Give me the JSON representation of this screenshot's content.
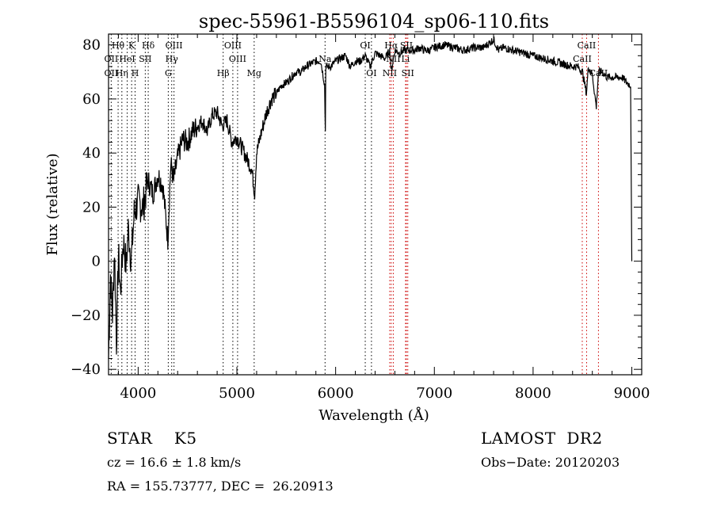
{
  "chart_data": {
    "type": "line",
    "title": "spec-55961-B5596104_sp06-110.fits",
    "xlabel": "Wavelength (Å)",
    "ylabel": "Flux (relative)",
    "xlim": [
      3700,
      9100
    ],
    "ylim": [
      -42,
      84
    ],
    "xticks": [
      "4000",
      "5000",
      "6000",
      "7000",
      "8000",
      "9000"
    ],
    "xtick_values": [
      4000,
      5000,
      6000,
      7000,
      8000,
      9000
    ],
    "yticks": [
      "−40",
      "−20",
      "0",
      "20",
      "40",
      "60",
      "80"
    ],
    "ytick_values": [
      -40,
      -20,
      0,
      20,
      40,
      60,
      80
    ],
    "series": [
      {
        "x": [
          3700,
          3720,
          3740,
          3760,
          3780,
          3800,
          3820,
          3850,
          3880,
          3900,
          3930,
          3960,
          4000,
          4050,
          4100,
          4150,
          4200,
          4250,
          4300,
          4330,
          4360,
          4400,
          4450,
          4500,
          4550,
          4600,
          4650,
          4700,
          4750,
          4800,
          4850,
          4900,
          4950,
          5000,
          5050,
          5100,
          5150,
          5180,
          5200,
          5250,
          5300,
          5350,
          5400,
          5450,
          5500,
          5550,
          5600,
          5650,
          5700,
          5750,
          5800,
          5850,
          5890,
          5895,
          5900,
          5950,
          6000,
          6050,
          6100,
          6150,
          6200,
          6250,
          6300,
          6350,
          6400,
          6450,
          6500,
          6550,
          6563,
          6600,
          6650,
          6700,
          6750,
          6800,
          6850,
          6900,
          6950,
          7000,
          7100,
          7200,
          7300,
          7400,
          7500,
          7600,
          7650,
          7700,
          7800,
          7900,
          8000,
          8100,
          8200,
          8300,
          8400,
          8450,
          8500,
          8540,
          8560,
          8600,
          8640,
          8662,
          8700,
          8750,
          8800,
          8850,
          8900,
          8950,
          8990,
          9000
        ],
        "y": [
          -36,
          -5,
          -20,
          5,
          -30,
          3,
          -12,
          8,
          -2,
          12,
          0,
          18,
          22,
          20,
          30,
          25,
          32,
          28,
          8,
          36,
          30,
          38,
          45,
          44,
          48,
          50,
          52,
          48,
          54,
          55,
          50,
          52,
          44,
          46,
          42,
          38,
          34,
          25,
          40,
          48,
          55,
          60,
          62,
          65,
          66,
          68,
          70,
          70,
          72,
          73,
          74,
          74,
          65,
          42,
          72,
          72,
          74,
          75,
          76,
          72,
          74,
          74,
          76,
          72,
          77,
          76,
          75,
          78,
          70,
          78,
          77,
          78,
          78,
          78,
          79,
          78,
          78,
          79,
          80,
          79,
          78,
          79,
          79,
          82,
          78,
          79,
          78,
          77,
          76,
          75,
          74,
          73,
          72,
          72,
          70,
          62,
          72,
          69,
          57,
          70,
          70,
          68,
          68,
          68,
          68,
          66,
          65,
          0
        ]
      }
    ],
    "line_labels": [
      {
        "label": "Hθ",
        "x": 3797,
        "row": 0,
        "color": "#000000"
      },
      {
        "label": "K",
        "x": 3934,
        "row": 0,
        "color": "#000000"
      },
      {
        "label": "Hδ",
        "x": 4102,
        "row": 0,
        "color": "#000000"
      },
      {
        "label": "OIII",
        "x": 4363,
        "row": 0,
        "color": "#000000"
      },
      {
        "label": "OIII",
        "x": 4959,
        "row": 0,
        "color": "#000000"
      },
      {
        "label": "OI",
        "x": 6300,
        "row": 0,
        "color": "#000000"
      },
      {
        "label": "Hα",
        "x": 6563,
        "row": 0,
        "color": "#000000"
      },
      {
        "label": "SII",
        "x": 6717,
        "row": 0,
        "color": "#000000"
      },
      {
        "label": "CaII",
        "x": 8542,
        "row": 0,
        "color": "#000000"
      },
      {
        "label": "OII",
        "x": 3727,
        "row": 1,
        "color": "#000000"
      },
      {
        "label": "HeI",
        "x": 3889,
        "row": 1,
        "color": "#000000"
      },
      {
        "label": "SII",
        "x": 4072,
        "row": 1,
        "color": "#000000"
      },
      {
        "label": "Hγ",
        "x": 4340,
        "row": 1,
        "color": "#000000"
      },
      {
        "label": "OIII",
        "x": 5007,
        "row": 1,
        "color": "#000000"
      },
      {
        "label": "Na",
        "x": 5893,
        "row": 1,
        "color": "#000000"
      },
      {
        "label": "NII",
        "x": 6584,
        "row": 1,
        "color": "#000000"
      },
      {
        "label": "Li",
        "x": 6708,
        "row": 1,
        "color": "#000000"
      },
      {
        "label": "CaII",
        "x": 8498,
        "row": 1,
        "color": "#000000"
      },
      {
        "label": "OII",
        "x": 3727,
        "row": 2,
        "color": "#000000"
      },
      {
        "label": "Hη",
        "x": 3835,
        "row": 2,
        "color": "#000000"
      },
      {
        "label": "H",
        "x": 3969,
        "row": 2,
        "color": "#000000"
      },
      {
        "label": "G",
        "x": 4305,
        "row": 2,
        "color": "#000000"
      },
      {
        "label": "Hβ",
        "x": 4861,
        "row": 2,
        "color": "#000000"
      },
      {
        "label": "Mg",
        "x": 5175,
        "row": 2,
        "color": "#000000"
      },
      {
        "label": "OI",
        "x": 6363,
        "row": 2,
        "color": "#000000"
      },
      {
        "label": "NII",
        "x": 6548,
        "row": 2,
        "color": "#000000"
      },
      {
        "label": "SII",
        "x": 6731,
        "row": 2,
        "color": "#000000"
      },
      {
        "label": "CaII",
        "x": 8662,
        "row": 2,
        "color": "#000000"
      }
    ],
    "line_markers": [
      {
        "x": 3727,
        "color": "#000000"
      },
      {
        "x": 3797,
        "color": "#000000"
      },
      {
        "x": 3835,
        "color": "#000000"
      },
      {
        "x": 3889,
        "color": "#000000"
      },
      {
        "x": 3934,
        "color": "#000000"
      },
      {
        "x": 3969,
        "color": "#000000"
      },
      {
        "x": 4072,
        "color": "#000000"
      },
      {
        "x": 4102,
        "color": "#000000"
      },
      {
        "x": 4305,
        "color": "#000000"
      },
      {
        "x": 4340,
        "color": "#000000"
      },
      {
        "x": 4363,
        "color": "#000000"
      },
      {
        "x": 4861,
        "color": "#000000"
      },
      {
        "x": 4959,
        "color": "#000000"
      },
      {
        "x": 5007,
        "color": "#000000"
      },
      {
        "x": 5175,
        "color": "#000000"
      },
      {
        "x": 5893,
        "color": "#000000"
      },
      {
        "x": 6300,
        "color": "#000000"
      },
      {
        "x": 6363,
        "color": "#000000"
      },
      {
        "x": 6548,
        "color": "#cc0000"
      },
      {
        "x": 6563,
        "color": "#cc0000"
      },
      {
        "x": 6584,
        "color": "#cc0000"
      },
      {
        "x": 6708,
        "color": "#cc0000"
      },
      {
        "x": 6717,
        "color": "#cc0000"
      },
      {
        "x": 6731,
        "color": "#cc0000"
      },
      {
        "x": 8498,
        "color": "#cc0000"
      },
      {
        "x": 8542,
        "color": "#cc0000"
      },
      {
        "x": 8662,
        "color": "#cc0000"
      }
    ],
    "grid": false,
    "legend": "none"
  },
  "info": {
    "object_class": "STAR    K5",
    "survey": "LAMOST  DR2",
    "redshift": "cz = 16.6 ± 1.8 km/s",
    "obs_date": "Obs−Date: 20120203",
    "coords": "RA = 155.73777, DEC =  26.20913"
  }
}
